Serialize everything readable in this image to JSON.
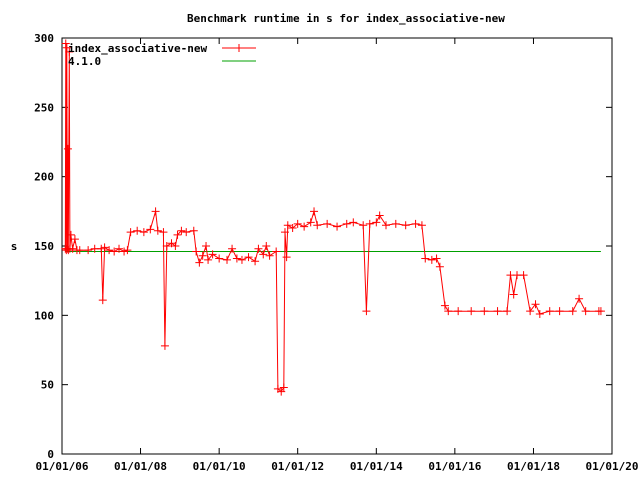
{
  "chart_data": {
    "type": "line",
    "title": "Benchmark runtime in s for index_associative-new",
    "xlabel": "",
    "ylabel": "s",
    "ylim": [
      0,
      300
    ],
    "yticks": [
      0,
      50,
      100,
      150,
      200,
      250,
      300
    ],
    "xlim": [
      "2006-01-01",
      "2020-01-01"
    ],
    "xticks": [
      {
        "date": "2006-01-01",
        "label": "01/01/06"
      },
      {
        "date": "2008-01-01",
        "label": "01/01/08"
      },
      {
        "date": "2010-01-01",
        "label": "01/01/10"
      },
      {
        "date": "2012-01-01",
        "label": "01/01/12"
      },
      {
        "date": "2014-01-01",
        "label": "01/01/14"
      },
      {
        "date": "2016-01-01",
        "label": "01/01/16"
      },
      {
        "date": "2018-01-01",
        "label": "01/01/18"
      },
      {
        "date": "2020-01-01",
        "label": "01/01/20"
      }
    ],
    "legend_position": "top-left",
    "grid": false,
    "series": [
      {
        "name": "index_associative-new",
        "color": "#ff0000",
        "marker": "plus",
        "points": [
          [
            "2006-02-01",
            148
          ],
          [
            "2006-02-05",
            296
          ],
          [
            "2006-02-10",
            147
          ],
          [
            "2006-02-15",
            293
          ],
          [
            "2006-02-20",
            148
          ],
          [
            "2006-02-25",
            220
          ],
          [
            "2006-03-01",
            147
          ],
          [
            "2006-03-10",
            290
          ],
          [
            "2006-03-15",
            148
          ],
          [
            "2006-03-25",
            158
          ],
          [
            "2006-04-10",
            148
          ],
          [
            "2006-05-01",
            155
          ],
          [
            "2006-05-20",
            147
          ],
          [
            "2006-06-15",
            147
          ],
          [
            "2006-09-01",
            147
          ],
          [
            "2006-11-01",
            148
          ],
          [
            "2007-01-01",
            148
          ],
          [
            "2007-01-15",
            111
          ],
          [
            "2007-02-01",
            149
          ],
          [
            "2007-03-15",
            147
          ],
          [
            "2007-05-01",
            146
          ],
          [
            "2007-06-15",
            148
          ],
          [
            "2007-08-01",
            146
          ],
          [
            "2007-09-01",
            147
          ],
          [
            "2007-10-01",
            160
          ],
          [
            "2007-12-01",
            161
          ],
          [
            "2008-02-01",
            160
          ],
          [
            "2008-04-01",
            162
          ],
          [
            "2008-05-20",
            175
          ],
          [
            "2008-06-10",
            161
          ],
          [
            "2008-08-01",
            160
          ],
          [
            "2008-08-15",
            78
          ],
          [
            "2008-09-01",
            150
          ],
          [
            "2008-10-15",
            152
          ],
          [
            "2008-11-20",
            150
          ],
          [
            "2008-12-10",
            158
          ],
          [
            "2009-01-15",
            161
          ],
          [
            "2009-03-01",
            160
          ],
          [
            "2009-05-10",
            161
          ],
          [
            "2009-06-01",
            146
          ],
          [
            "2009-07-01",
            138
          ],
          [
            "2009-08-01",
            143
          ],
          [
            "2009-09-01",
            150
          ],
          [
            "2009-09-20",
            140
          ],
          [
            "2009-11-01",
            144
          ],
          [
            "2010-01-01",
            141
          ],
          [
            "2010-03-15",
            140
          ],
          [
            "2010-05-01",
            148
          ],
          [
            "2010-06-15",
            141
          ],
          [
            "2010-08-01",
            140
          ],
          [
            "2010-10-01",
            142
          ],
          [
            "2010-12-01",
            139
          ],
          [
            "2011-01-01",
            148
          ],
          [
            "2011-02-15",
            144
          ],
          [
            "2011-03-15",
            150
          ],
          [
            "2011-04-15",
            143
          ],
          [
            "2011-06-15",
            146
          ],
          [
            "2011-07-01",
            47
          ],
          [
            "2011-08-01",
            45
          ],
          [
            "2011-08-25",
            48
          ],
          [
            "2011-09-05",
            160
          ],
          [
            "2011-09-20",
            142
          ],
          [
            "2011-10-01",
            165
          ],
          [
            "2011-11-15",
            163
          ],
          [
            "2012-01-01",
            166
          ],
          [
            "2012-03-01",
            164
          ],
          [
            "2012-05-01",
            167
          ],
          [
            "2012-06-01",
            175
          ],
          [
            "2012-07-01",
            165
          ],
          [
            "2012-10-01",
            166
          ],
          [
            "2013-01-01",
            164
          ],
          [
            "2013-04-01",
            166
          ],
          [
            "2013-06-01",
            167
          ],
          [
            "2013-09-01",
            165
          ],
          [
            "2013-10-01",
            103
          ],
          [
            "2013-11-01",
            166
          ],
          [
            "2014-01-01",
            167
          ],
          [
            "2014-02-01",
            172
          ],
          [
            "2014-04-01",
            165
          ],
          [
            "2014-07-01",
            166
          ],
          [
            "2014-10-01",
            165
          ],
          [
            "2015-01-01",
            166
          ],
          [
            "2015-03-01",
            165
          ],
          [
            "2015-04-01",
            141
          ],
          [
            "2015-06-01",
            140
          ],
          [
            "2015-07-15",
            141
          ],
          [
            "2015-08-15",
            135
          ],
          [
            "2015-10-01",
            107
          ],
          [
            "2015-11-01",
            103
          ],
          [
            "2016-02-01",
            103
          ],
          [
            "2016-06-01",
            103
          ],
          [
            "2016-10-01",
            103
          ],
          [
            "2017-02-01",
            103
          ],
          [
            "2017-05-01",
            103
          ],
          [
            "2017-06-01",
            129
          ],
          [
            "2017-07-01",
            115
          ],
          [
            "2017-08-01",
            129
          ],
          [
            "2017-10-01",
            129
          ],
          [
            "2017-12-01",
            103
          ],
          [
            "2018-01-20",
            108
          ],
          [
            "2018-03-01",
            101
          ],
          [
            "2018-06-01",
            103
          ],
          [
            "2018-09-01",
            103
          ],
          [
            "2019-01-01",
            103
          ],
          [
            "2019-03-01",
            112
          ],
          [
            "2019-05-01",
            103
          ],
          [
            "2019-09-01",
            103
          ],
          [
            "2019-09-20",
            103
          ]
        ]
      },
      {
        "name": "4.1.0",
        "color": "#00a000",
        "marker": "none",
        "points": [
          [
            "2006-02-01",
            146
          ],
          [
            "2019-09-20",
            146
          ]
        ]
      }
    ]
  }
}
